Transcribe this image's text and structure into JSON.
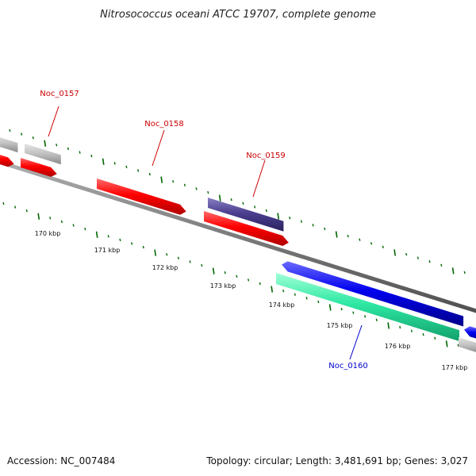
{
  "title": "Nitrosococcus oceani ATCC 19707, complete genome",
  "footer": {
    "accession": "Accession: NC_007484",
    "stats": "Topology: circular; Length: 3,481,691 bp; Genes: 3,027"
  },
  "colors": {
    "forward_cds": "#ff0000",
    "reverse_cds": "#0000ff",
    "other_gene": "#bbbbbb",
    "highlight_purple": "#4b3f8f",
    "highlight_teal": "#2ee8a3",
    "label_red": "#cc0000",
    "label_blue": "#0000cc",
    "backbone": "#808080",
    "tick": "#006600"
  },
  "scale_labels": [
    "170 kbp",
    "171 kbp",
    "172 kbp",
    "173 kbp",
    "174 kbp",
    "175 kbp",
    "176 kbp",
    "177 kbp"
  ],
  "gene_labels": [
    {
      "id": "noc0157",
      "text": "Noc_0157",
      "color": "#cc0000"
    },
    {
      "id": "noc0158",
      "text": "Noc_0158",
      "color": "#cc0000"
    },
    {
      "id": "noc0159",
      "text": "Noc_0159",
      "color": "#cc0000"
    },
    {
      "id": "noc0160",
      "text": "Noc_0160",
      "color": "#0000cc"
    }
  ]
}
